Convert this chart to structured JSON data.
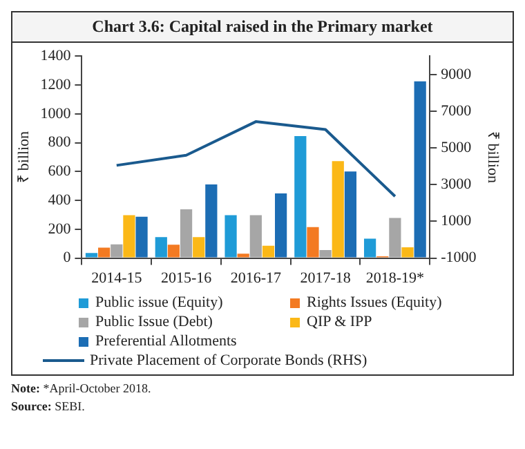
{
  "chart_data": {
    "type": "bar",
    "title": "Chart 3.6: Capital raised in the Primary market",
    "categories": [
      "2014-15",
      "2015-16",
      "2016-17",
      "2017-18",
      "2018-19*"
    ],
    "series": [
      {
        "name": "Public issue (Equity)",
        "color": "#1f9bd7",
        "values": [
          35,
          145,
          297,
          845,
          135
        ]
      },
      {
        "name": "Rights Issues (Equity)",
        "color": "#f37a22",
        "values": [
          72,
          93,
          30,
          215,
          12
        ]
      },
      {
        "name": "Public Issue (Debt)",
        "color": "#a6a6a6",
        "values": [
          95,
          338,
          297,
          55,
          278
        ]
      },
      {
        "name": "QIP & IPP",
        "color": "#fbb817",
        "values": [
          297,
          145,
          85,
          672,
          75
        ]
      },
      {
        "name": "Preferential Allotments",
        "color": "#1c6db4",
        "values": [
          287,
          510,
          448,
          600,
          1225
        ]
      },
      {
        "name": "Private Placement of Corporate Bonds (RHS)",
        "color": "#1a5a8e",
        "type": "line",
        "axis": "y2",
        "values": [
          4050,
          4600,
          6430,
          6000,
          2360
        ]
      }
    ],
    "ylabel": "₹ billion",
    "y2label": "₹ billion",
    "ylim": [
      0,
      1400
    ],
    "yticks": [
      0,
      200,
      400,
      600,
      800,
      1000,
      1200,
      1400
    ],
    "y2lim": [
      -1000,
      10000
    ],
    "y2ticks": [
      -1000,
      1000,
      3000,
      5000,
      7000,
      9000
    ],
    "grid": false,
    "legend": "bottom",
    "marker": "none",
    "line_style": "solid",
    "annotations": [
      "Note: *April-October 2018.",
      "Source: SEBI."
    ]
  }
}
